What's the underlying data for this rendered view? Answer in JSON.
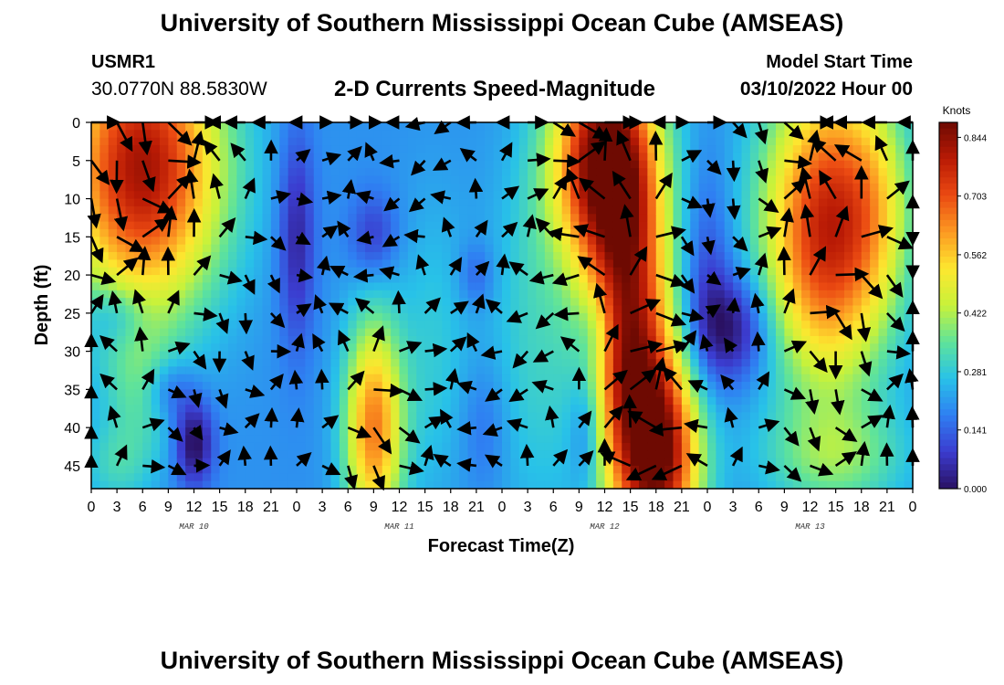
{
  "header": {
    "title": "University of Southern Mississippi Ocean Cube (AMSEAS)",
    "station": "USMR1",
    "coordinates": "30.0770N  88.5830W",
    "subtitle": "2-D Currents Speed-Magnitude",
    "model_start_label": "Model Start Time",
    "model_start_value": "03/10/2022 Hour 00"
  },
  "footer": {
    "title": "University of Southern Mississippi Ocean Cube (AMSEAS)"
  },
  "chart_data": {
    "type": "heatmap",
    "title": "2-D Currents Speed-Magnitude",
    "xlabel": "Forecast Time(Z)",
    "ylabel": "Depth (ft)",
    "x_range_hours": [
      0,
      96
    ],
    "x_tick_step_hours": 3,
    "x_tick_labels": [
      "0",
      "3",
      "6",
      "9",
      "12",
      "15",
      "18",
      "21",
      "0",
      "3",
      "6",
      "9",
      "12",
      "15",
      "18",
      "21",
      "0",
      "3",
      "6",
      "9",
      "12",
      "15",
      "18",
      "21",
      "0",
      "3",
      "6",
      "9",
      "12",
      "15",
      "18",
      "21",
      "0"
    ],
    "day_labels": [
      {
        "label": "MAR 10",
        "hour": 12
      },
      {
        "label": "MAR 11",
        "hour": 36
      },
      {
        "label": "MAR 12",
        "hour": 60
      },
      {
        "label": "MAR 13",
        "hour": 84
      }
    ],
    "y_range_ft": [
      0,
      48
    ],
    "y_ticks": [
      0,
      5,
      10,
      15,
      20,
      25,
      30,
      35,
      40,
      45
    ],
    "colorbar": {
      "unit": "Knots",
      "min": 0.0,
      "max": 0.88,
      "tick_values": [
        0.0,
        0.141,
        0.281,
        0.422,
        0.562,
        0.703,
        0.844
      ],
      "tick_labels": [
        "0.000",
        "0.141",
        "0.281",
        "0.422",
        "0.562",
        "0.703",
        "0.844"
      ],
      "colors": [
        "#2a1163",
        "#3b3ccf",
        "#2f7ff2",
        "#28c2e8",
        "#5fe39a",
        "#c8f23a",
        "#fde72f",
        "#fc9a22",
        "#eb4a12",
        "#b91a05",
        "#6e0a02"
      ]
    },
    "speed_blobs": [
      {
        "hour": 6,
        "depth": 6,
        "amp": 0.62,
        "sx": 6.5,
        "sy": 13
      },
      {
        "hour": 6,
        "depth": 35,
        "amp": 0.12,
        "sx": 3,
        "sy": 6
      },
      {
        "hour": 3,
        "depth": 45,
        "amp": 0.1,
        "sx": 3,
        "sy": 4
      },
      {
        "hour": 12,
        "depth": 42,
        "amp": -0.22,
        "sx": 1.6,
        "sy": 4
      },
      {
        "hour": 9,
        "depth": 35,
        "amp": -0.12,
        "sx": 2,
        "sy": 3
      },
      {
        "hour": 3,
        "depth": 25,
        "amp": -0.1,
        "sx": 2.5,
        "sy": 3
      },
      {
        "hour": 24,
        "depth": 15,
        "amp": -0.16,
        "sx": 1.5,
        "sy": 10
      },
      {
        "hour": 33,
        "depth": 15,
        "amp": -0.12,
        "sx": 2,
        "sy": 4
      },
      {
        "hour": 33,
        "depth": 40,
        "amp": 0.45,
        "sx": 2.4,
        "sy": 10
      },
      {
        "hour": 40,
        "depth": 30,
        "amp": 0.08,
        "sx": 3,
        "sy": 14
      },
      {
        "hour": 45,
        "depth": 20,
        "amp": -0.08,
        "sx": 1.5,
        "sy": 3
      },
      {
        "hour": 46,
        "depth": 40,
        "amp": -0.06,
        "sx": 2,
        "sy": 6
      },
      {
        "hour": 52,
        "depth": 28,
        "amp": 0.1,
        "sx": 4,
        "sy": 18
      },
      {
        "hour": 60,
        "depth": 5,
        "amp": 0.68,
        "sx": 4.2,
        "sy": 10
      },
      {
        "hour": 63,
        "depth": 30,
        "amp": 0.6,
        "sx": 3.4,
        "sy": 16
      },
      {
        "hour": 67,
        "depth": 44,
        "amp": 0.52,
        "sx": 3.2,
        "sy": 9
      },
      {
        "hour": 58,
        "depth": 40,
        "amp": -0.14,
        "sx": 1.5,
        "sy": 6
      },
      {
        "hour": 59,
        "depth": 27,
        "amp": -0.1,
        "sx": 1.5,
        "sy": 4
      },
      {
        "hour": 72,
        "depth": 20,
        "amp": -0.1,
        "sx": 2,
        "sy": 10
      },
      {
        "hour": 75,
        "depth": 27,
        "amp": -0.2,
        "sx": 3.2,
        "sy": 5
      },
      {
        "hour": 86,
        "depth": 14,
        "amp": 0.58,
        "sx": 5.2,
        "sy": 14
      },
      {
        "hour": 92,
        "depth": 10,
        "amp": 0.12,
        "sx": 3,
        "sy": 10
      },
      {
        "hour": 87,
        "depth": 44,
        "amp": 0.16,
        "sx": 6,
        "sy": 5
      }
    ],
    "speed_background": 0.2,
    "vector_columns_hours": [
      0,
      3,
      6,
      9,
      12,
      15,
      18,
      21,
      24,
      27,
      30,
      33,
      36,
      39,
      42,
      45,
      48,
      51,
      54,
      57,
      60,
      63,
      66,
      69,
      72,
      75,
      78,
      81,
      84,
      87,
      90,
      93,
      96
    ],
    "vector_rows_depth": [
      0,
      5,
      10,
      15,
      20,
      25,
      30,
      35,
      40,
      45
    ],
    "vector_style": "arrows, direction encoded, length proportional to speed"
  }
}
